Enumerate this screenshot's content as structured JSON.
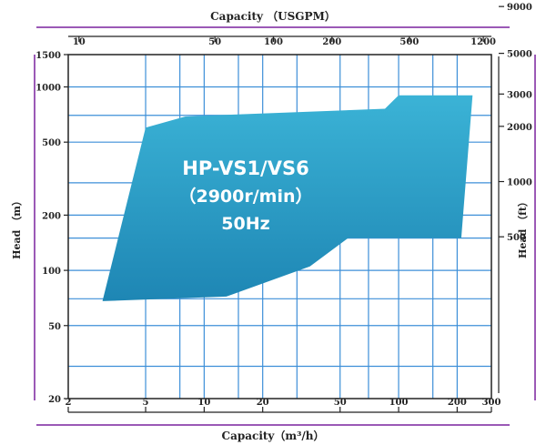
{
  "chart_data": {
    "type": "area",
    "title_top": "Capacity （USGPM）",
    "xlabel": "Capacity（m³/h）",
    "ylabel_left": "Head （m）",
    "ylabel_right": "Head （ft）",
    "x_scale": "log",
    "y_scale": "log",
    "xlim": [
      2,
      300
    ],
    "ylim": [
      20,
      1500
    ],
    "x_ticks": [
      2,
      5,
      10,
      20,
      50,
      100,
      200,
      300
    ],
    "x_tick_labels": [
      "2",
      "5",
      "10",
      "20",
      "50",
      "100",
      "200",
      "300"
    ],
    "y_ticks": [
      20,
      50,
      100,
      200,
      500,
      1000,
      1500
    ],
    "y_tick_labels": [
      "20",
      "50",
      "100",
      "200",
      "500",
      "1000",
      "1500"
    ],
    "top_ticks_usgpm": [
      10,
      50,
      100,
      200,
      500,
      1200
    ],
    "top_tick_labels": [
      "10",
      "50",
      "100",
      "200",
      "500",
      "1200"
    ],
    "right_ticks_ft": [
      500,
      1000,
      2000,
      3000,
      5000,
      9000
    ],
    "right_tick_labels": [
      "500",
      "1000",
      "2000",
      "3000",
      "5000",
      "9000"
    ],
    "grid": true,
    "region": {
      "name": "HP-VS1/VS6",
      "label_lines": [
        "HP-VS1/VS6",
        "（2900r/min）",
        "50Hz"
      ],
      "color_top": "#3bb3d6",
      "color_bottom": "#1e86b4",
      "points": [
        {
          "x": 5,
          "y": 600
        },
        {
          "x": 8,
          "y": 690
        },
        {
          "x": 85,
          "y": 760
        },
        {
          "x": 100,
          "y": 900
        },
        {
          "x": 240,
          "y": 900
        },
        {
          "x": 210,
          "y": 150
        },
        {
          "x": 55,
          "y": 150
        },
        {
          "x": 35,
          "y": 105
        },
        {
          "x": 13,
          "y": 72
        },
        {
          "x": 3,
          "y": 68
        }
      ]
    },
    "colors": {
      "grid": "#3d8fd8",
      "axis": "#9b59b6",
      "frame": "#222222"
    }
  }
}
